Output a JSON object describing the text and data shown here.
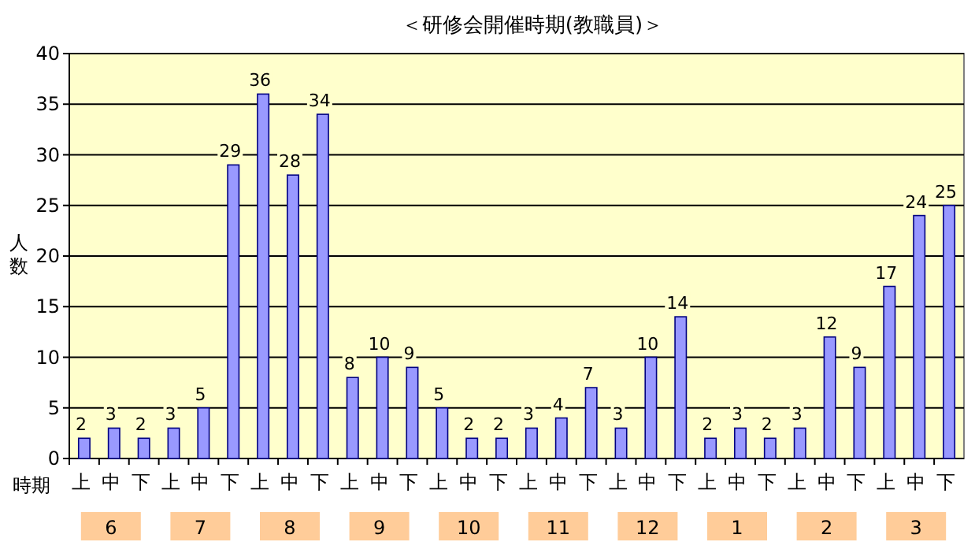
{
  "chart_data": {
    "type": "bar",
    "title": "＜研修会開催時期(教職員)＞",
    "xlabel": "時期",
    "ylabel": "人数",
    "categories": [
      "上",
      "中",
      "下",
      "上",
      "中",
      "下",
      "上",
      "中",
      "下",
      "上",
      "中",
      "下",
      "上",
      "中",
      "下",
      "上",
      "中",
      "下",
      "上",
      "中",
      "下",
      "上",
      "中",
      "下",
      "上",
      "中",
      "下",
      "上",
      "中",
      "下"
    ],
    "values": [
      2,
      3,
      2,
      3,
      5,
      29,
      36,
      28,
      34,
      8,
      10,
      9,
      5,
      2,
      2,
      3,
      4,
      7,
      3,
      10,
      14,
      2,
      3,
      2,
      3,
      12,
      9,
      17,
      24,
      25
    ],
    "color": "#9999ff",
    "data_labels": true,
    "grid": "y",
    "ylim": [
      0,
      40
    ],
    "yticks": [
      0,
      5,
      10,
      15,
      20,
      25,
      30,
      35,
      40
    ],
    "annotations": [
      "6",
      "7",
      "8",
      "9",
      "10",
      "11",
      "12",
      "1",
      "2",
      "3"
    ]
  }
}
